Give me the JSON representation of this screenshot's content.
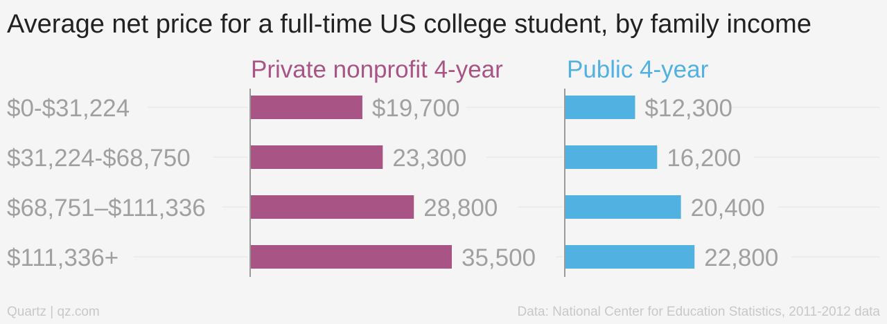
{
  "chart_data": {
    "type": "bar",
    "orientation": "horizontal",
    "title": "Average net price for a full-time US college student, by family income",
    "categories": [
      "$0-$31,224",
      "$31,224-$68,750",
      "$68,751–$111,336",
      "$111,336+"
    ],
    "series": [
      {
        "name": "Private nonprofit 4-year",
        "color": "#a85585",
        "values": [
          19700,
          23300,
          28800,
          35500
        ],
        "value_labels": [
          "$19,700",
          "23,300",
          "28,800",
          "35,500"
        ]
      },
      {
        "name": "Public 4-year",
        "color": "#51b1e1",
        "values": [
          12300,
          16200,
          20400,
          22800
        ],
        "value_labels": [
          "$12,300",
          "16,200",
          "20,400",
          "22,800"
        ]
      }
    ],
    "xlim": [
      0,
      50000
    ],
    "grid": true,
    "legend": "none"
  },
  "footer": {
    "credit": "Quartz | qz.com",
    "source": "Data: National Center for Education Statistics, 2011-2012 data"
  }
}
